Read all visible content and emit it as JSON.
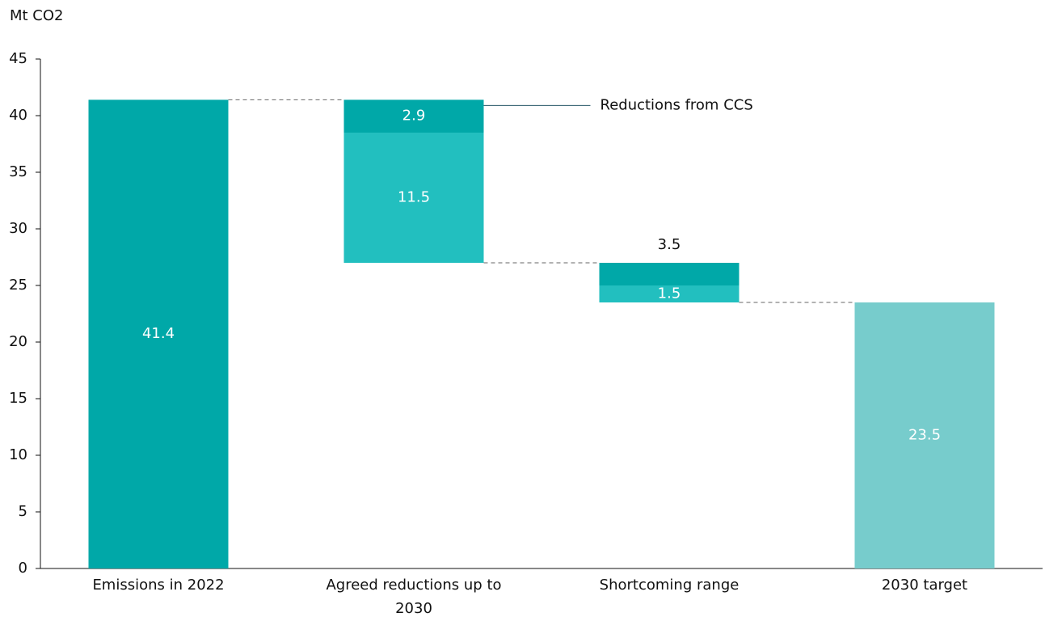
{
  "chart_data": {
    "type": "waterfall",
    "y_label": "Mt CO2",
    "categories": [
      "Emissions in 2022",
      "Agreed reductions up to 2030",
      "Shortcoming range",
      "2030 target"
    ],
    "bars": [
      {
        "kind": "total",
        "segments": [
          {
            "value": 41.4,
            "color": "#00a8a8"
          }
        ]
      },
      {
        "kind": "decrease",
        "segments": [
          {
            "value": 2.9,
            "color": "#00a8a8"
          },
          {
            "value": 11.5,
            "color": "#22bfbf"
          }
        ]
      },
      {
        "kind": "decrease",
        "total_label": 3.5,
        "segments": [
          {
            "value": 2.0,
            "color": "#00a8a8"
          },
          {
            "value": 1.5,
            "color": "#22bfbf"
          }
        ]
      },
      {
        "kind": "total",
        "segments": [
          {
            "value": 23.5,
            "color": "#77cccc"
          }
        ]
      }
    ],
    "annotation": "Reductions from CCS",
    "ylim": [
      0,
      45
    ],
    "yticks": [
      0,
      5,
      10,
      15,
      20,
      25,
      30,
      35,
      40,
      45
    ]
  }
}
